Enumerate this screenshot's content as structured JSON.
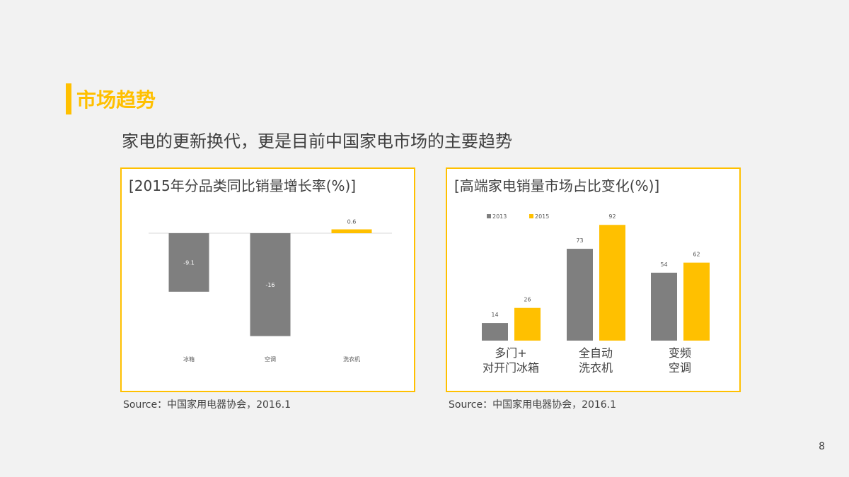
{
  "header": {
    "title": "市场趋势",
    "subtitle": "家电的更新换代，更是目前中国家电市场的主要趋势"
  },
  "colors": {
    "accent": "#FFC000",
    "gray": "#7F7F7F"
  },
  "page_number": "8",
  "chart_data": [
    {
      "type": "bar",
      "title": "[2015年分品类同比销量增长率(%)]",
      "categories": [
        "冰箱",
        "空调",
        "洗衣机"
      ],
      "values": [
        -9.1,
        -16,
        0.6
      ],
      "labels": [
        "-9.1",
        "-16",
        "0.6"
      ],
      "colors": [
        "#7F7F7F",
        "#7F7F7F",
        "#FFC000"
      ],
      "grid": false,
      "source": "Source：中国家用电器协会，2016.1"
    },
    {
      "type": "bar",
      "title": "[高端家电销量市场占比变化(%)]",
      "categories": [
        "多门+\n对开门冰箱",
        "全自动\n洗衣机",
        "变频\n空调"
      ],
      "series": [
        {
          "name": "2013",
          "values": [
            14,
            73,
            54
          ],
          "color": "#7F7F7F"
        },
        {
          "name": "2015",
          "values": [
            26,
            92,
            62
          ],
          "color": "#FFC000"
        }
      ],
      "legend": "top-left",
      "grid": false,
      "source": "Source：中国家用电器协会，2016.1"
    }
  ]
}
